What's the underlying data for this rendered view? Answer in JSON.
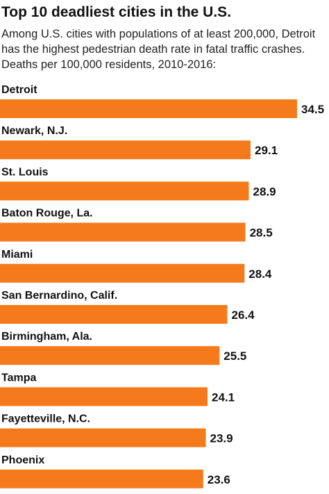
{
  "header": {
    "title": "Top 10 deadliest cities in the U.S.",
    "subtitle": "Among U.S. cities with populations of at least 200,000, Detroit has the highest pedestrian death rate in fatal traffic crashes. Deaths per 100,000 residents, 2010-2016:"
  },
  "colors": {
    "bar": "#f57a1c",
    "text": "#111111"
  },
  "chart_data": {
    "type": "bar",
    "orientation": "horizontal",
    "title": "Top 10 deadliest cities in the U.S.",
    "subtitle": "Among U.S. cities with populations of at least 200,000, Detroit has the highest pedestrian death rate in fatal traffic crashes. Deaths per 100,000 residents, 2010-2016:",
    "categories": [
      "Detroit",
      "Newark, N.J.",
      "St. Louis",
      "Baton Rouge, La.",
      "Miami",
      "San Bernardino, Calif.",
      "Birmingham, Ala.",
      "Tampa",
      "Fayetteville, N.C.",
      "Phoenix"
    ],
    "values": [
      34.5,
      29.1,
      28.9,
      28.5,
      28.4,
      26.4,
      25.5,
      24.1,
      23.9,
      23.6
    ],
    "value_labels": [
      "34.5",
      "29.1",
      "28.9",
      "28.5",
      "28.4",
      "26.4",
      "25.5",
      "24.1",
      "23.9",
      "23.6"
    ],
    "xlim": [
      0,
      34.5
    ],
    "grid": false,
    "legend": "none",
    "xlabel": "",
    "ylabel": ""
  }
}
